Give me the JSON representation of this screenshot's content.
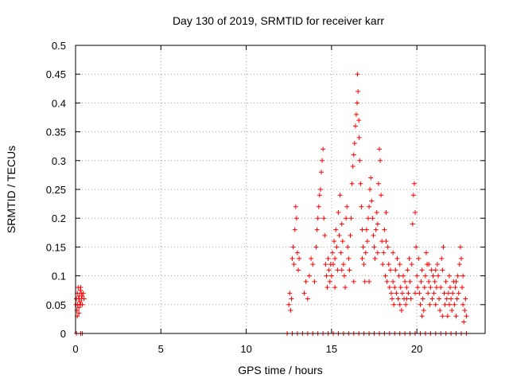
{
  "chart_data": {
    "type": "scatter",
    "title": "Day 130 of 2019, SRMTID for receiver karr",
    "xlabel": "GPS time / hours",
    "ylabel": "SRMTID / TECUs",
    "xlim": [
      0,
      24
    ],
    "ylim": [
      0,
      0.5
    ],
    "x_ticks": [
      0,
      5,
      10,
      15,
      20
    ],
    "x_tick_labels": [
      "0",
      "5",
      "10",
      "15",
      "20"
    ],
    "y_ticks": [
      0,
      0.05,
      0.1,
      0.15,
      0.2,
      0.25,
      0.3,
      0.35,
      0.4,
      0.45,
      0.5
    ],
    "y_tick_labels": [
      "0",
      "0.05",
      "0.1",
      "0.15",
      "0.2",
      "0.25",
      "0.3",
      "0.35",
      "0.4",
      "0.45",
      "0.5"
    ],
    "grid": true,
    "marker": "plus",
    "colors": {
      "series": "#ff0000",
      "grid": "#a0a0a0",
      "frame": "#000000"
    },
    "series": [
      {
        "name": "SRMTID",
        "points": [
          [
            0.02,
            0.05
          ],
          [
            0.05,
            0.06
          ],
          [
            0.08,
            0.04
          ],
          [
            0.1,
            0.07
          ],
          [
            0.12,
            0.05
          ],
          [
            0.15,
            0.08
          ],
          [
            0.18,
            0.06
          ],
          [
            0.2,
            0.045
          ],
          [
            0.22,
            0.065
          ],
          [
            0.25,
            0.055
          ],
          [
            0.28,
            0.075
          ],
          [
            0.3,
            0.05
          ],
          [
            0.33,
            0.07
          ],
          [
            0.35,
            0.06
          ],
          [
            0.38,
            0.065
          ],
          [
            0.4,
            0.05
          ],
          [
            0.45,
            0.07
          ],
          [
            0.5,
            0.06
          ],
          [
            0.1,
            0.03
          ],
          [
            0.2,
            0.035
          ],
          [
            0.3,
            0.08
          ],
          [
            0.05,
            0.0
          ],
          [
            0.3,
            0.0
          ],
          [
            0.4,
            0.0
          ],
          [
            12.4,
            0.0
          ],
          [
            12.7,
            0.0
          ],
          [
            13.0,
            0.0
          ],
          [
            13.3,
            0.0
          ],
          [
            13.6,
            0.0
          ],
          [
            13.9,
            0.0
          ],
          [
            14.2,
            0.0
          ],
          [
            14.5,
            0.0
          ],
          [
            14.8,
            0.0
          ],
          [
            15.1,
            0.0
          ],
          [
            15.4,
            0.0
          ],
          [
            15.7,
            0.0
          ],
          [
            16.0,
            0.0
          ],
          [
            16.3,
            0.0
          ],
          [
            16.6,
            0.0
          ],
          [
            16.9,
            0.0
          ],
          [
            17.2,
            0.0
          ],
          [
            17.5,
            0.0
          ],
          [
            17.8,
            0.0
          ],
          [
            18.1,
            0.0
          ],
          [
            18.4,
            0.0
          ],
          [
            18.7,
            0.0
          ],
          [
            19.0,
            0.0
          ],
          [
            19.3,
            0.0
          ],
          [
            19.6,
            0.0
          ],
          [
            19.9,
            0.0
          ],
          [
            20.2,
            0.0
          ],
          [
            20.5,
            0.0
          ],
          [
            20.8,
            0.0
          ],
          [
            21.1,
            0.0
          ],
          [
            21.4,
            0.0
          ],
          [
            21.7,
            0.0
          ],
          [
            22.0,
            0.0
          ],
          [
            22.3,
            0.0
          ],
          [
            22.6,
            0.0
          ],
          [
            22.9,
            0.0
          ],
          [
            12.5,
            0.05
          ],
          [
            12.55,
            0.07
          ],
          [
            12.6,
            0.04
          ],
          [
            12.65,
            0.06
          ],
          [
            12.7,
            0.13
          ],
          [
            12.75,
            0.15
          ],
          [
            12.8,
            0.12
          ],
          [
            12.85,
            0.18
          ],
          [
            12.9,
            0.22
          ],
          [
            12.95,
            0.2
          ],
          [
            13.0,
            0.14
          ],
          [
            13.05,
            0.11
          ],
          [
            13.1,
            0.13
          ],
          [
            13.4,
            0.07
          ],
          [
            13.5,
            0.09
          ],
          [
            13.6,
            0.06
          ],
          [
            13.7,
            0.1
          ],
          [
            13.8,
            0.13
          ],
          [
            13.9,
            0.12
          ],
          [
            14.0,
            0.09
          ],
          [
            14.1,
            0.15
          ],
          [
            14.15,
            0.18
          ],
          [
            14.2,
            0.2
          ],
          [
            14.25,
            0.22
          ],
          [
            14.3,
            0.24
          ],
          [
            14.35,
            0.25
          ],
          [
            14.4,
            0.28
          ],
          [
            14.45,
            0.3
          ],
          [
            14.5,
            0.32
          ],
          [
            14.55,
            0.2
          ],
          [
            14.6,
            0.17
          ],
          [
            14.65,
            0.12
          ],
          [
            14.7,
            0.1
          ],
          [
            14.75,
            0.08
          ],
          [
            14.8,
            0.13
          ],
          [
            14.85,
            0.11
          ],
          [
            14.9,
            0.09
          ],
          [
            14.95,
            0.12
          ],
          [
            15.0,
            0.1
          ],
          [
            15.05,
            0.14
          ],
          [
            15.1,
            0.12
          ],
          [
            15.15,
            0.16
          ],
          [
            15.2,
            0.13
          ],
          [
            15.25,
            0.18
          ],
          [
            15.3,
            0.15
          ],
          [
            15.35,
            0.11
          ],
          [
            15.4,
            0.21
          ],
          [
            15.45,
            0.17
          ],
          [
            15.5,
            0.24
          ],
          [
            15.55,
            0.14
          ],
          [
            15.6,
            0.19
          ],
          [
            15.65,
            0.16
          ],
          [
            15.7,
            0.12
          ],
          [
            15.75,
            0.1
          ],
          [
            15.8,
            0.08
          ],
          [
            15.85,
            0.2
          ],
          [
            15.9,
            0.22
          ],
          [
            15.95,
            0.15
          ],
          [
            16.0,
            0.13
          ],
          [
            16.05,
            0.11
          ],
          [
            16.1,
            0.17
          ],
          [
            16.15,
            0.2
          ],
          [
            16.2,
            0.26
          ],
          [
            16.25,
            0.29
          ],
          [
            16.3,
            0.31
          ],
          [
            16.35,
            0.33
          ],
          [
            16.4,
            0.36
          ],
          [
            16.45,
            0.38
          ],
          [
            16.5,
            0.4
          ],
          [
            16.52,
            0.45
          ],
          [
            16.55,
            0.42
          ],
          [
            16.6,
            0.37
          ],
          [
            16.62,
            0.34
          ],
          [
            16.65,
            0.3
          ],
          [
            16.7,
            0.26
          ],
          [
            16.75,
            0.22
          ],
          [
            16.8,
            0.18
          ],
          [
            16.85,
            0.15
          ],
          [
            16.9,
            0.12
          ],
          [
            16.95,
            0.09
          ],
          [
            17.0,
            0.14
          ],
          [
            17.05,
            0.18
          ],
          [
            17.1,
            0.16
          ],
          [
            17.15,
            0.2
          ],
          [
            17.2,
            0.22
          ],
          [
            17.25,
            0.25
          ],
          [
            17.3,
            0.27
          ],
          [
            17.35,
            0.23
          ],
          [
            17.4,
            0.2
          ],
          [
            17.45,
            0.17
          ],
          [
            17.5,
            0.15
          ],
          [
            17.55,
            0.13
          ],
          [
            17.6,
            0.18
          ],
          [
            17.65,
            0.21
          ],
          [
            17.7,
            0.19
          ],
          [
            17.75,
            0.26
          ],
          [
            17.8,
            0.32
          ],
          [
            17.85,
            0.3
          ],
          [
            17.9,
            0.24
          ],
          [
            17.95,
            0.16
          ],
          [
            18.0,
            0.12
          ],
          [
            18.05,
            0.14
          ],
          [
            18.1,
            0.18
          ],
          [
            18.15,
            0.1
          ],
          [
            18.2,
            0.21
          ],
          [
            18.25,
            0.09
          ],
          [
            18.3,
            0.15
          ],
          [
            18.35,
            0.12
          ],
          [
            18.4,
            0.08
          ],
          [
            18.45,
            0.11
          ],
          [
            18.5,
            0.07
          ],
          [
            18.55,
            0.06
          ],
          [
            18.6,
            0.09
          ],
          [
            18.65,
            0.05
          ],
          [
            18.7,
            0.08
          ],
          [
            18.75,
            0.11
          ],
          [
            18.8,
            0.07
          ],
          [
            18.85,
            0.13
          ],
          [
            18.9,
            0.06
          ],
          [
            18.95,
            0.1
          ],
          [
            19.0,
            0.05
          ],
          [
            19.05,
            0.08
          ],
          [
            19.1,
            0.04
          ],
          [
            19.15,
            0.07
          ],
          [
            19.2,
            0.1
          ],
          [
            19.25,
            0.06
          ],
          [
            19.3,
            0.09
          ],
          [
            19.35,
            0.05
          ],
          [
            19.4,
            0.08
          ],
          [
            19.45,
            0.11
          ],
          [
            19.5,
            0.07
          ],
          [
            19.55,
            0.13
          ],
          [
            19.6,
            0.09
          ],
          [
            19.65,
            0.06
          ],
          [
            19.7,
            0.12
          ],
          [
            19.75,
            0.19
          ],
          [
            19.8,
            0.24
          ],
          [
            19.85,
            0.26
          ],
          [
            19.9,
            0.21
          ],
          [
            19.95,
            0.15
          ],
          [
            20.0,
            0.1
          ],
          [
            20.05,
            0.08
          ],
          [
            20.1,
            0.13
          ],
          [
            20.15,
            0.07
          ],
          [
            20.2,
            0.05
          ],
          [
            20.25,
            0.09
          ],
          [
            20.3,
            0.11
          ],
          [
            20.35,
            0.06
          ],
          [
            20.4,
            0.04
          ],
          [
            20.45,
            0.08
          ],
          [
            20.5,
            0.1
          ],
          [
            20.55,
            0.14
          ],
          [
            20.6,
            0.12
          ],
          [
            20.65,
            0.07
          ],
          [
            20.7,
            0.09
          ],
          [
            20.75,
            0.05
          ],
          [
            20.8,
            0.08
          ],
          [
            20.85,
            0.11
          ],
          [
            20.9,
            0.06
          ],
          [
            20.95,
            0.1
          ],
          [
            21.0,
            0.07
          ],
          [
            21.05,
            0.09
          ],
          [
            21.1,
            0.05
          ],
          [
            21.15,
            0.08
          ],
          [
            21.2,
            0.12
          ],
          [
            21.25,
            0.1
          ],
          [
            21.3,
            0.06
          ],
          [
            21.35,
            0.04
          ],
          [
            21.4,
            0.08
          ],
          [
            21.45,
            0.13
          ],
          [
            21.5,
            0.11
          ],
          [
            21.55,
            0.15
          ],
          [
            21.6,
            0.07
          ],
          [
            21.65,
            0.05
          ],
          [
            21.7,
            0.09
          ],
          [
            21.75,
            0.06
          ],
          [
            21.8,
            0.03
          ],
          [
            21.85,
            0.07
          ],
          [
            21.9,
            0.05
          ],
          [
            21.95,
            0.08
          ],
          [
            22.0,
            0.06
          ],
          [
            22.05,
            0.04
          ],
          [
            22.1,
            0.07
          ],
          [
            22.15,
            0.09
          ],
          [
            22.2,
            0.05
          ],
          [
            22.25,
            0.08
          ],
          [
            22.3,
            0.03
          ],
          [
            22.35,
            0.06
          ],
          [
            22.4,
            0.1
          ],
          [
            22.45,
            0.07
          ],
          [
            22.5,
            0.12
          ],
          [
            22.55,
            0.15
          ],
          [
            22.6,
            0.13
          ],
          [
            22.65,
            0.08
          ],
          [
            22.7,
            0.05
          ],
          [
            22.75,
            0.02
          ],
          [
            22.8,
            0.04
          ],
          [
            22.85,
            0.06
          ],
          [
            22.9,
            0.03
          ],
          [
            15.2,
            0.08
          ],
          [
            15.6,
            0.11
          ],
          [
            16.3,
            0.09
          ],
          [
            16.8,
            0.13
          ],
          [
            17.2,
            0.09
          ],
          [
            17.7,
            0.14
          ],
          [
            18.2,
            0.16
          ],
          [
            18.6,
            0.14
          ],
          [
            19.0,
            0.12
          ],
          [
            19.4,
            0.06
          ],
          [
            19.9,
            0.07
          ],
          [
            20.3,
            0.03
          ],
          [
            20.7,
            0.12
          ],
          [
            21.1,
            0.11
          ],
          [
            21.5,
            0.03
          ],
          [
            21.9,
            0.1
          ],
          [
            22.3,
            0.09
          ],
          [
            22.7,
            0.1
          ]
        ]
      }
    ]
  }
}
